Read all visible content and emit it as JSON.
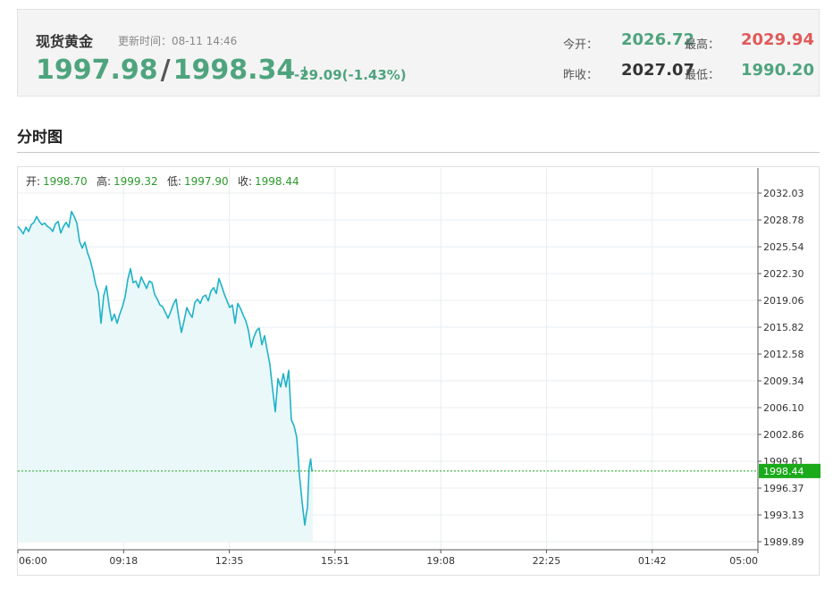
{
  "header": {
    "name": "现货黄金",
    "updated": "更新时间：08-11 14:46",
    "bid": "1997.98",
    "ask": "1998.34",
    "arrow": "↓",
    "change": "-29.09(-1.43%)",
    "open_label": "今开：",
    "open": "2026.72",
    "high_label": "最高：",
    "high": "2029.94",
    "prev_close_label": "昨收：",
    "prev_close": "2027.07",
    "low_label": "最低：",
    "low": "1990.20"
  },
  "section_title": "分时图",
  "colors": {
    "up": "#e05a5a",
    "down": "#4ea47d",
    "line": "#20b2c8",
    "area": "#eaf8f9",
    "last_price_tag": "#1aaa1a"
  },
  "chart_data": {
    "type": "area",
    "ohlc_labels": [
      {
        "label": "开:",
        "value": "1998.70"
      },
      {
        "label": "高:",
        "value": "1999.32"
      },
      {
        "label": "低:",
        "value": "1997.90"
      },
      {
        "label": "收:",
        "value": "1998.44"
      }
    ],
    "x_ticks": [
      "06:00",
      "09:18",
      "12:35",
      "15:51",
      "19:08",
      "22:25",
      "01:42",
      "05:00"
    ],
    "y_ticks": [
      "2032.03",
      "2028.78",
      "2025.54",
      "2022.30",
      "2019.06",
      "2015.82",
      "2012.58",
      "2009.34",
      "2006.10",
      "2002.86",
      "1999.61",
      "1996.37",
      "1993.13",
      "1989.89"
    ],
    "ylim": [
      1989.89,
      2032.03
    ],
    "x_range_minutes": [
      0,
      1380
    ],
    "last_price": 1998.44,
    "last_price_label": "1998.44",
    "series": [
      {
        "values": [
          [
            0,
            2028.0
          ],
          [
            5,
            2027.6
          ],
          [
            10,
            2027.1
          ],
          [
            15,
            2027.9
          ],
          [
            20,
            2027.4
          ],
          [
            25,
            2028.2
          ],
          [
            30,
            2028.5
          ],
          [
            35,
            2029.2
          ],
          [
            40,
            2028.6
          ],
          [
            45,
            2028.2
          ],
          [
            50,
            2028.4
          ],
          [
            55,
            2028.0
          ],
          [
            60,
            2027.8
          ],
          [
            65,
            2027.4
          ],
          [
            70,
            2028.3
          ],
          [
            75,
            2028.6
          ],
          [
            80,
            2027.2
          ],
          [
            85,
            2028.0
          ],
          [
            90,
            2028.5
          ],
          [
            95,
            2027.9
          ],
          [
            100,
            2029.8
          ],
          [
            105,
            2029.2
          ],
          [
            110,
            2028.4
          ],
          [
            115,
            2026.2
          ],
          [
            120,
            2025.4
          ],
          [
            125,
            2026.1
          ],
          [
            130,
            2024.8
          ],
          [
            135,
            2023.9
          ],
          [
            140,
            2022.6
          ],
          [
            145,
            2021.0
          ],
          [
            150,
            2020.0
          ],
          [
            155,
            2016.3
          ],
          [
            160,
            2019.6
          ],
          [
            165,
            2020.8
          ],
          [
            170,
            2018.4
          ],
          [
            175,
            2016.6
          ],
          [
            180,
            2017.4
          ],
          [
            185,
            2016.3
          ],
          [
            190,
            2017.4
          ],
          [
            195,
            2018.3
          ],
          [
            200,
            2019.5
          ],
          [
            205,
            2021.6
          ],
          [
            210,
            2022.9
          ],
          [
            215,
            2021.2
          ],
          [
            220,
            2021.4
          ],
          [
            225,
            2020.6
          ],
          [
            230,
            2021.9
          ],
          [
            235,
            2021.2
          ],
          [
            240,
            2020.5
          ],
          [
            245,
            2021.4
          ],
          [
            250,
            2021.2
          ],
          [
            255,
            2019.8
          ],
          [
            260,
            2019.2
          ],
          [
            265,
            2018.5
          ],
          [
            270,
            2018.3
          ],
          [
            275,
            2017.6
          ],
          [
            280,
            2016.9
          ],
          [
            285,
            2017.7
          ],
          [
            290,
            2018.6
          ],
          [
            295,
            2019.2
          ],
          [
            300,
            2017.0
          ],
          [
            305,
            2015.2
          ],
          [
            310,
            2016.6
          ],
          [
            315,
            2018.2
          ],
          [
            320,
            2017.5
          ],
          [
            325,
            2017.0
          ],
          [
            330,
            2018.8
          ],
          [
            335,
            2019.2
          ],
          [
            340,
            2018.7
          ],
          [
            345,
            2019.5
          ],
          [
            350,
            2019.7
          ],
          [
            355,
            2019.0
          ],
          [
            360,
            2020.2
          ],
          [
            365,
            2020.6
          ],
          [
            370,
            2019.9
          ],
          [
            375,
            2021.7
          ],
          [
            380,
            2020.8
          ],
          [
            385,
            2019.8
          ],
          [
            390,
            2019.0
          ],
          [
            395,
            2018.2
          ],
          [
            400,
            2018.5
          ],
          [
            405,
            2016.3
          ],
          [
            410,
            2018.7
          ],
          [
            415,
            2018.1
          ],
          [
            420,
            2017.3
          ],
          [
            425,
            2016.6
          ],
          [
            430,
            2015.4
          ],
          [
            435,
            2013.4
          ],
          [
            440,
            2014.6
          ],
          [
            445,
            2015.4
          ],
          [
            450,
            2015.7
          ],
          [
            455,
            2013.7
          ],
          [
            460,
            2014.8
          ],
          [
            465,
            2013.0
          ],
          [
            470,
            2011.3
          ],
          [
            475,
            2008.3
          ],
          [
            480,
            2005.6
          ],
          [
            485,
            2009.6
          ],
          [
            490,
            2008.6
          ],
          [
            495,
            2010.2
          ],
          [
            500,
            2008.6
          ],
          [
            505,
            2010.6
          ],
          [
            510,
            2004.6
          ],
          [
            515,
            2003.9
          ],
          [
            520,
            2002.5
          ],
          [
            525,
            1998.0
          ],
          [
            530,
            1994.7
          ],
          [
            535,
            1991.9
          ],
          [
            538,
            1993.3
          ],
          [
            540,
            1994.0
          ],
          [
            543,
            1998.8
          ],
          [
            546,
            1999.9
          ],
          [
            548,
            1998.6
          ],
          [
            550,
            1998.44
          ]
        ]
      }
    ]
  }
}
